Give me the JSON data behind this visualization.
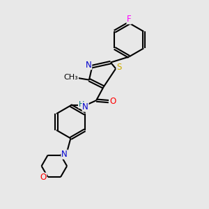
{
  "bg_color": "#e8e8e8",
  "bond_color": "black",
  "bond_width": 1.5,
  "atom_colors": {
    "N": "#0000cc",
    "O": "#ff0000",
    "S": "#ccaa00",
    "F": "#ff00ff",
    "C": "black",
    "H": "#007070"
  },
  "font_size": 8.5
}
